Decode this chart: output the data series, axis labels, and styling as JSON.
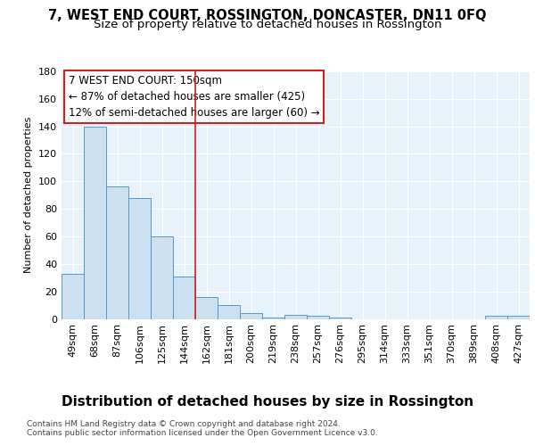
{
  "title": "7, WEST END COURT, ROSSINGTON, DONCASTER, DN11 0FQ",
  "subtitle": "Size of property relative to detached houses in Rossington",
  "xlabel": "Distribution of detached houses by size in Rossington",
  "ylabel": "Number of detached properties",
  "footnote1": "Contains HM Land Registry data © Crown copyright and database right 2024.",
  "footnote2": "Contains public sector information licensed under the Open Government Licence v3.0.",
  "bar_labels": [
    "49sqm",
    "68sqm",
    "87sqm",
    "106sqm",
    "125sqm",
    "144sqm",
    "162sqm",
    "181sqm",
    "200sqm",
    "219sqm",
    "238sqm",
    "257sqm",
    "276sqm",
    "295sqm",
    "314sqm",
    "333sqm",
    "351sqm",
    "370sqm",
    "389sqm",
    "408sqm",
    "427sqm"
  ],
  "bar_values": [
    33,
    140,
    96,
    88,
    60,
    31,
    16,
    10,
    4,
    1,
    3,
    2,
    1,
    0,
    0,
    0,
    0,
    0,
    0,
    2,
    2
  ],
  "bar_color": "#cce0f0",
  "bar_edge_color": "#5599cc",
  "red_line_x": 5.5,
  "red_line_color": "#cc2222",
  "annotation_title": "7 WEST END COURT: 150sqm",
  "annotation_line1": "← 87% of detached houses are smaller (425)",
  "annotation_line2": "12% of semi-detached houses are larger (60) →",
  "annotation_box_color": "#ffffff",
  "annotation_box_edge": "#cc2222",
  "ylim": [
    0,
    180
  ],
  "yticks": [
    0,
    20,
    40,
    60,
    80,
    100,
    120,
    140,
    160,
    180
  ],
  "background_color": "#e8f2fb",
  "fig_background": "#ffffff",
  "title_fontsize": 10.5,
  "subtitle_fontsize": 9.5,
  "xlabel_fontsize": 11,
  "ylabel_fontsize": 8,
  "tick_fontsize": 8,
  "annot_fontsize": 8.5,
  "footnote_fontsize": 6.5
}
